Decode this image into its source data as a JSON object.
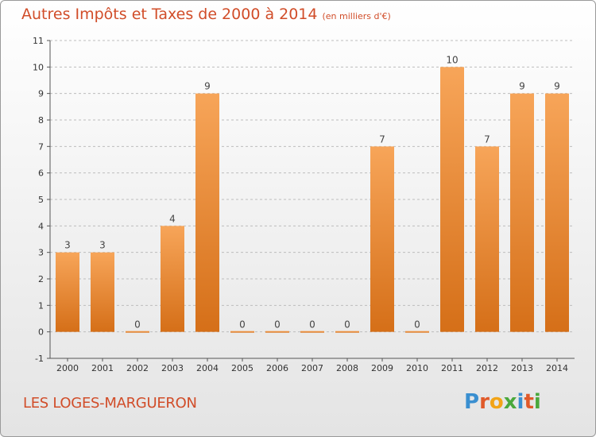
{
  "header": {
    "title": "Autres Impôts et Taxes de 2000 à 2014",
    "subtitle": "(en milliers d'€)"
  },
  "footer": {
    "commune": "LES LOGES-MARGUERON",
    "logo_letters": [
      "P",
      "r",
      "o",
      "x",
      "i",
      "t",
      "i"
    ],
    "logo_colors": [
      "#3a8fd0",
      "#e05a2a",
      "#f2a417",
      "#4aa83c",
      "#3a8fd0",
      "#e05a2a",
      "#4aa83c"
    ]
  },
  "colors": {
    "bar_light": "#f7a559",
    "bar_dark": "#d56f18",
    "grid": "#bdbdbd",
    "text_accent": "#d14d29"
  },
  "chart_data": {
    "type": "bar",
    "title": "Autres Impôts et Taxes de 2000 à 2014",
    "subtitle": "(en milliers d'€)",
    "categories": [
      "2000",
      "2001",
      "2002",
      "2003",
      "2004",
      "2005",
      "2006",
      "2007",
      "2008",
      "2009",
      "2010",
      "2011",
      "2012",
      "2013",
      "2014"
    ],
    "values": [
      3,
      3,
      0,
      4,
      9,
      0,
      0,
      0,
      0,
      7,
      0,
      10,
      7,
      9,
      9
    ],
    "value_labels": [
      "3",
      "3",
      "0",
      "4",
      "9",
      "0",
      "0",
      "0",
      "0",
      "7",
      "0",
      "10",
      "7",
      "9",
      "9"
    ],
    "y_ticks": [
      "-1",
      "0",
      "1",
      "2",
      "3",
      "4",
      "5",
      "6",
      "7",
      "8",
      "9",
      "10",
      "11"
    ],
    "ylim": [
      -1,
      11
    ],
    "grid": "horizontal dashed",
    "xlabel": "",
    "ylabel": ""
  }
}
